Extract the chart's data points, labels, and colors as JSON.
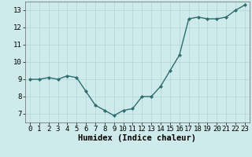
{
  "x": [
    0,
    1,
    2,
    3,
    4,
    5,
    6,
    7,
    8,
    9,
    10,
    11,
    12,
    13,
    14,
    15,
    16,
    17,
    18,
    19,
    20,
    21,
    22,
    23
  ],
  "y": [
    9.0,
    9.0,
    9.1,
    9.0,
    9.2,
    9.1,
    8.3,
    7.5,
    7.2,
    6.9,
    7.2,
    7.3,
    8.0,
    8.0,
    8.6,
    9.5,
    10.4,
    12.5,
    12.6,
    12.5,
    12.5,
    12.6,
    13.0,
    13.3
  ],
  "line_color": "#2d6e6e",
  "marker": "D",
  "marker_size": 2.0,
  "linewidth": 1.0,
  "xlabel": "Humidex (Indice chaleur)",
  "xlim": [
    -0.5,
    23.5
  ],
  "ylim": [
    6.5,
    13.5
  ],
  "yticks": [
    7,
    8,
    9,
    10,
    11,
    12,
    13
  ],
  "xticks": [
    0,
    1,
    2,
    3,
    4,
    5,
    6,
    7,
    8,
    9,
    10,
    11,
    12,
    13,
    14,
    15,
    16,
    17,
    18,
    19,
    20,
    21,
    22,
    23
  ],
  "bg_color": "#ceeaea",
  "grid_color": "#b8d8d8",
  "axis_fontsize": 7.5,
  "tick_fontsize": 6.5
}
